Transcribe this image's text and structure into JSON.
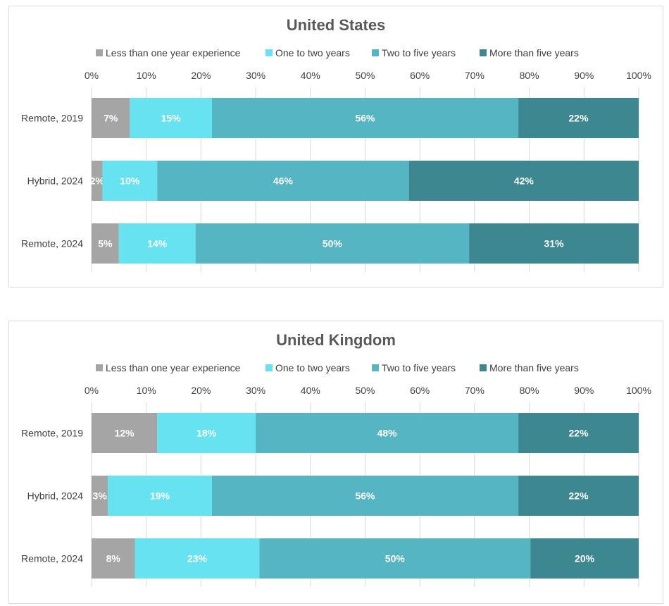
{
  "chart_data": [
    {
      "type": "bar",
      "orientation": "horizontal",
      "stacked": "percent",
      "title": "United States",
      "categories": [
        "Remote, 2019",
        "Hybrid, 2024",
        "Remote, 2024"
      ],
      "xlim": [
        0,
        100
      ],
      "xticks": [
        "0%",
        "10%",
        "20%",
        "30%",
        "40%",
        "50%",
        "60%",
        "70%",
        "80%",
        "90%",
        "100%"
      ],
      "legend_position": "top",
      "series": [
        {
          "name": "Less than one year experience",
          "color": "#a5a5a5",
          "values": [
            7,
            2,
            5
          ],
          "labels": [
            "7%",
            "2%",
            "5%"
          ]
        },
        {
          "name": "One to two years",
          "color": "#67e2f1",
          "values": [
            15,
            10,
            14
          ],
          "labels": [
            "15%",
            "10%",
            "14%"
          ]
        },
        {
          "name": "Two to five years",
          "color": "#56b5c2",
          "values": [
            56,
            46,
            50
          ],
          "labels": [
            "56%",
            "46%",
            "50%"
          ]
        },
        {
          "name": "More than five years",
          "color": "#3d8890",
          "values": [
            22,
            42,
            31
          ],
          "labels": [
            "22%",
            "42%",
            "31%"
          ]
        }
      ]
    },
    {
      "type": "bar",
      "orientation": "horizontal",
      "stacked": "percent",
      "title": "United Kingdom",
      "categories": [
        "Remote, 2019",
        "Hybrid, 2024",
        "Remote, 2024"
      ],
      "xlim": [
        0,
        100
      ],
      "xticks": [
        "0%",
        "10%",
        "20%",
        "30%",
        "40%",
        "50%",
        "60%",
        "70%",
        "80%",
        "90%",
        "100%"
      ],
      "legend_position": "top",
      "series": [
        {
          "name": "Less than one year experience",
          "color": "#a5a5a5",
          "values": [
            12,
            3,
            8
          ],
          "labels": [
            "12%",
            "3%",
            "8%"
          ]
        },
        {
          "name": "One to two years",
          "color": "#67e2f1",
          "values": [
            18,
            19,
            23
          ],
          "labels": [
            "18%",
            "19%",
            "23%"
          ]
        },
        {
          "name": "Two to five years",
          "color": "#56b5c2",
          "values": [
            48,
            56,
            50
          ],
          "labels": [
            "48%",
            "56%",
            "50%"
          ]
        },
        {
          "name": "More than five years",
          "color": "#3d8890",
          "values": [
            22,
            22,
            20
          ],
          "labels": [
            "22%",
            "22%",
            "20%"
          ]
        }
      ]
    }
  ]
}
